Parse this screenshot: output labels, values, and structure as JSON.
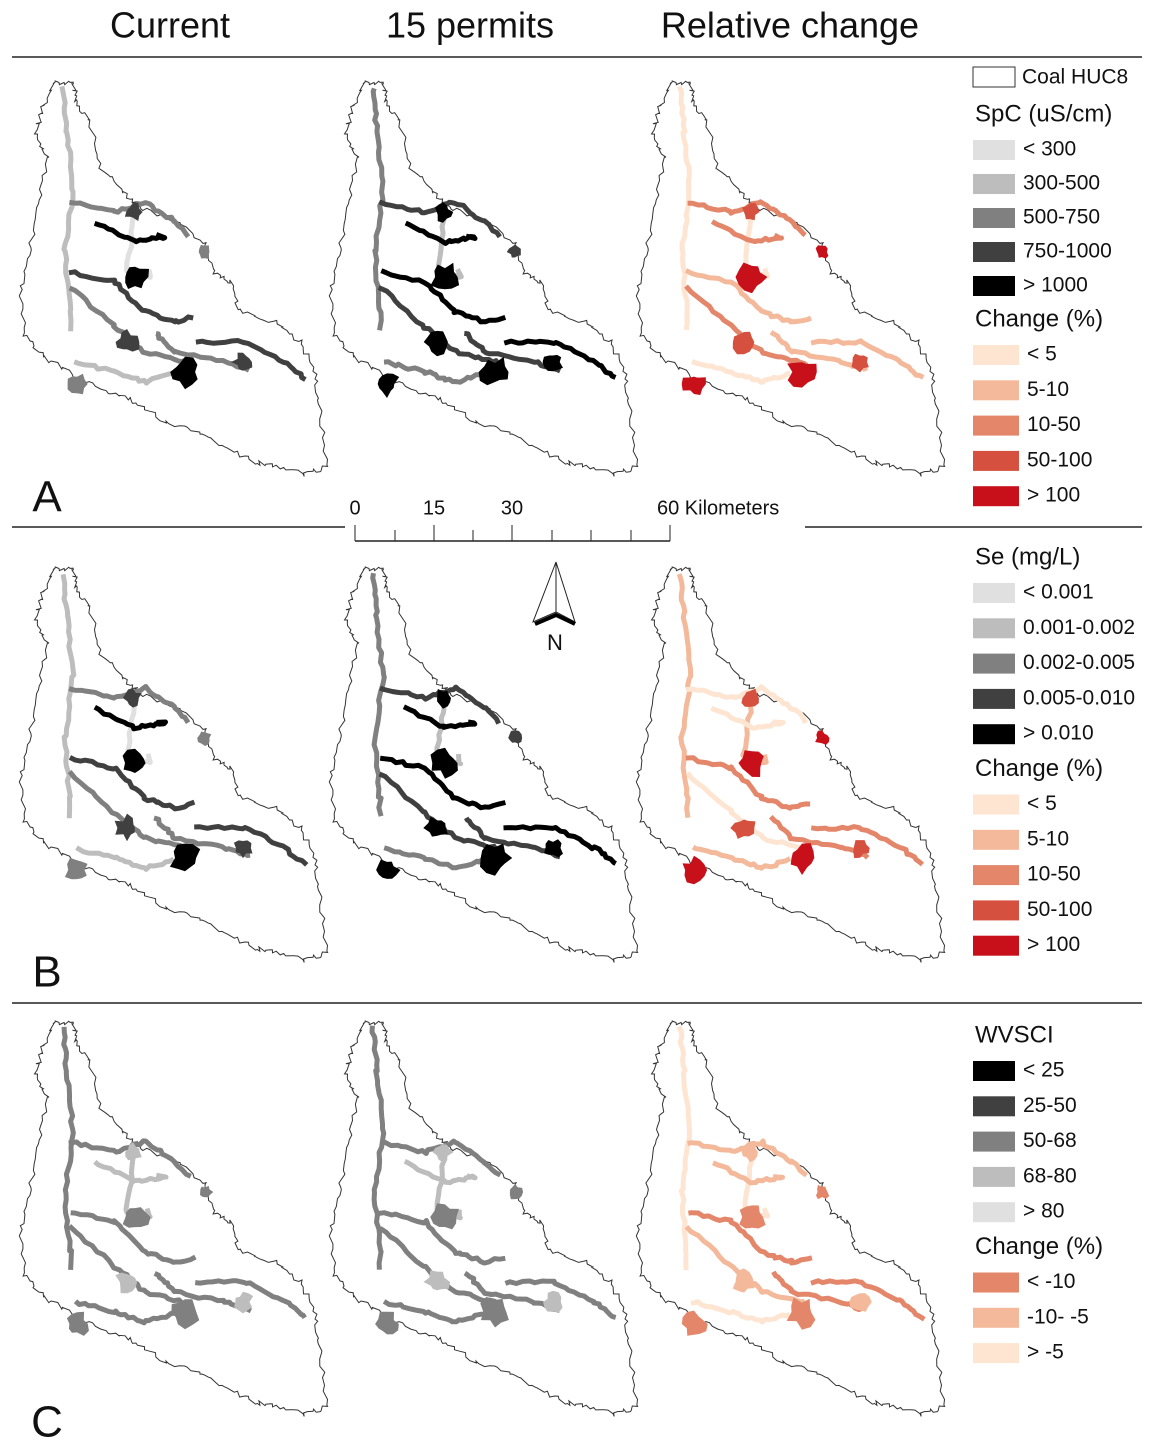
{
  "column_titles": [
    "Current",
    "15 permits",
    "Relative change"
  ],
  "boundary_legend": "Coal HUC8",
  "scale_bar": {
    "labels": [
      "0",
      "15",
      "30",
      "60 Kilometers"
    ]
  },
  "north_arrow": "N",
  "panels": [
    {
      "label": "A",
      "legends": [
        {
          "title": "SpC (uS/cm)",
          "items": [
            {
              "label": "< 300",
              "color": "#e0e0e0"
            },
            {
              "label": "300-500",
              "color": "#bdbdbd"
            },
            {
              "label": "500-750",
              "color": "#808080"
            },
            {
              "label": "750-1000",
              "color": "#404040"
            },
            {
              "label": "> 1000",
              "color": "#000000"
            }
          ]
        },
        {
          "title": "Change (%)",
          "items": [
            {
              "label": "< 5",
              "color": "#fde5d2"
            },
            {
              "label": "5-10",
              "color": "#f4b99a"
            },
            {
              "label": "10-50",
              "color": "#e3866a"
            },
            {
              "label": "50-100",
              "color": "#d5503e"
            },
            {
              "label": "> 100",
              "color": "#c8101a"
            }
          ]
        }
      ]
    },
    {
      "label": "B",
      "legends": [
        {
          "title": "Se (mg/L)",
          "items": [
            {
              "label": "< 0.001",
              "color": "#e0e0e0"
            },
            {
              "label": "0.001-0.002",
              "color": "#bdbdbd"
            },
            {
              "label": "0.002-0.005",
              "color": "#808080"
            },
            {
              "label": "0.005-0.010",
              "color": "#404040"
            },
            {
              "label": "> 0.010",
              "color": "#000000"
            }
          ]
        },
        {
          "title": "Change (%)",
          "items": [
            {
              "label": "< 5",
              "color": "#fde5d2"
            },
            {
              "label": "5-10",
              "color": "#f4b99a"
            },
            {
              "label": "10-50",
              "color": "#e3866a"
            },
            {
              "label": "50-100",
              "color": "#d5503e"
            },
            {
              "label": "> 100",
              "color": "#c8101a"
            }
          ]
        }
      ]
    },
    {
      "label": "C",
      "legends": [
        {
          "title": "WVSCI",
          "items": [
            {
              "label": "< 25",
              "color": "#000000"
            },
            {
              "label": "25-50",
              "color": "#404040"
            },
            {
              "label": "50-68",
              "color": "#808080"
            },
            {
              "label": "68-80",
              "color": "#bdbdbd"
            },
            {
              "label": "> 80",
              "color": "#e0e0e0"
            }
          ]
        },
        {
          "title": "Change (%)",
          "items": [
            {
              "label": "< -10",
              "color": "#e3866a"
            },
            {
              "label": "-10- -5",
              "color": "#f4b99a"
            },
            {
              "label": "> -5",
              "color": "#fde5d2"
            }
          ]
        }
      ]
    }
  ]
}
